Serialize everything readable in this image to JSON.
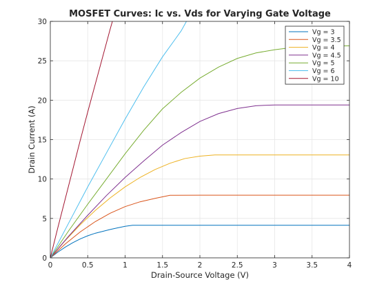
{
  "chart_data": {
    "type": "line",
    "title": "MOSFET Curves: Ic vs. Vds for Varying Gate Voltage",
    "xlabel": "Drain-Source Voltage (V)",
    "ylabel": "Drain Current (A)",
    "xlim": [
      0,
      4
    ],
    "ylim": [
      0,
      30
    ],
    "xticks": [
      0,
      0.5,
      1,
      1.5,
      2,
      2.5,
      3,
      3.5,
      4
    ],
    "xtick_labels": [
      "0",
      "0.5",
      "1",
      "1.5",
      "2",
      "2.5",
      "3",
      "3.5",
      "4"
    ],
    "yticks": [
      0,
      5,
      10,
      15,
      20,
      25,
      30
    ],
    "ytick_labels": [
      "0",
      "5",
      "10",
      "15",
      "20",
      "25",
      "30"
    ],
    "grid": true,
    "legend_position": "top-right",
    "series": [
      {
        "name": "Vg = 3",
        "color": "#0072BD",
        "x": [
          0,
          0.1,
          0.2,
          0.3,
          0.4,
          0.5,
          0.6,
          0.7,
          0.8,
          0.9,
          1.0,
          1.1,
          1.5,
          2.0,
          2.5,
          3.0,
          3.5,
          4.0
        ],
        "values": [
          0,
          0.72,
          1.36,
          1.92,
          2.4,
          2.8,
          3.12,
          3.36,
          3.6,
          3.8,
          4.0,
          4.13,
          4.13,
          4.13,
          4.13,
          4.13,
          4.13,
          4.13
        ]
      },
      {
        "name": "Vg = 3.5",
        "color": "#D95319",
        "x": [
          0,
          0.2,
          0.4,
          0.6,
          0.8,
          1.0,
          1.2,
          1.4,
          1.6,
          2.0,
          2.5,
          3.0,
          3.5,
          4.0
        ],
        "values": [
          0,
          1.76,
          3.29,
          4.59,
          5.66,
          6.5,
          7.11,
          7.54,
          7.94,
          7.95,
          7.95,
          7.95,
          7.95,
          7.95
        ]
      },
      {
        "name": "Vg = 4",
        "color": "#EDB120",
        "x": [
          0,
          0.2,
          0.4,
          0.6,
          0.8,
          1.0,
          1.2,
          1.4,
          1.6,
          1.8,
          2.0,
          2.2,
          2.5,
          3.0,
          3.5,
          4.0
        ],
        "values": [
          0,
          2.2,
          4.2,
          6.0,
          7.6,
          9.0,
          10.2,
          11.2,
          12.0,
          12.6,
          12.9,
          13.05,
          13.05,
          13.05,
          13.05,
          13.05
        ]
      },
      {
        "name": "Vg = 4.5",
        "color": "#7E2F8E",
        "x": [
          0,
          0.25,
          0.5,
          0.75,
          1.0,
          1.25,
          1.5,
          1.75,
          2.0,
          2.25,
          2.5,
          2.75,
          3.0,
          3.5,
          4.0
        ],
        "values": [
          0,
          2.8,
          5.4,
          7.9,
          10.2,
          12.3,
          14.3,
          15.9,
          17.3,
          18.3,
          18.95,
          19.3,
          19.4,
          19.4,
          19.4
        ]
      },
      {
        "name": "Vg = 5",
        "color": "#77AC30",
        "x": [
          0,
          0.25,
          0.5,
          0.75,
          1.0,
          1.25,
          1.5,
          1.75,
          2.0,
          2.25,
          2.5,
          2.75,
          3.0,
          3.25,
          3.5,
          4.0
        ],
        "values": [
          0,
          3.5,
          6.8,
          10.0,
          13.2,
          16.2,
          18.9,
          21.0,
          22.8,
          24.2,
          25.3,
          26.0,
          26.4,
          26.7,
          26.85,
          26.9
        ]
      },
      {
        "name": "Vg = 6",
        "color": "#4DBEEE",
        "x": [
          0,
          0.25,
          0.5,
          0.75,
          1.0,
          1.25,
          1.5,
          1.75,
          1.82
        ],
        "values": [
          0,
          4.5,
          9.0,
          13.3,
          17.6,
          21.7,
          25.5,
          28.8,
          30.0
        ]
      },
      {
        "name": "Vg = 10",
        "color": "#A2142F",
        "x": [
          0,
          0.1,
          0.2,
          0.3,
          0.4,
          0.5,
          0.6,
          0.7,
          0.8,
          0.83
        ],
        "values": [
          0,
          3.8,
          7.5,
          11.2,
          14.9,
          18.5,
          22.0,
          25.5,
          29.0,
          30.0
        ]
      }
    ]
  }
}
